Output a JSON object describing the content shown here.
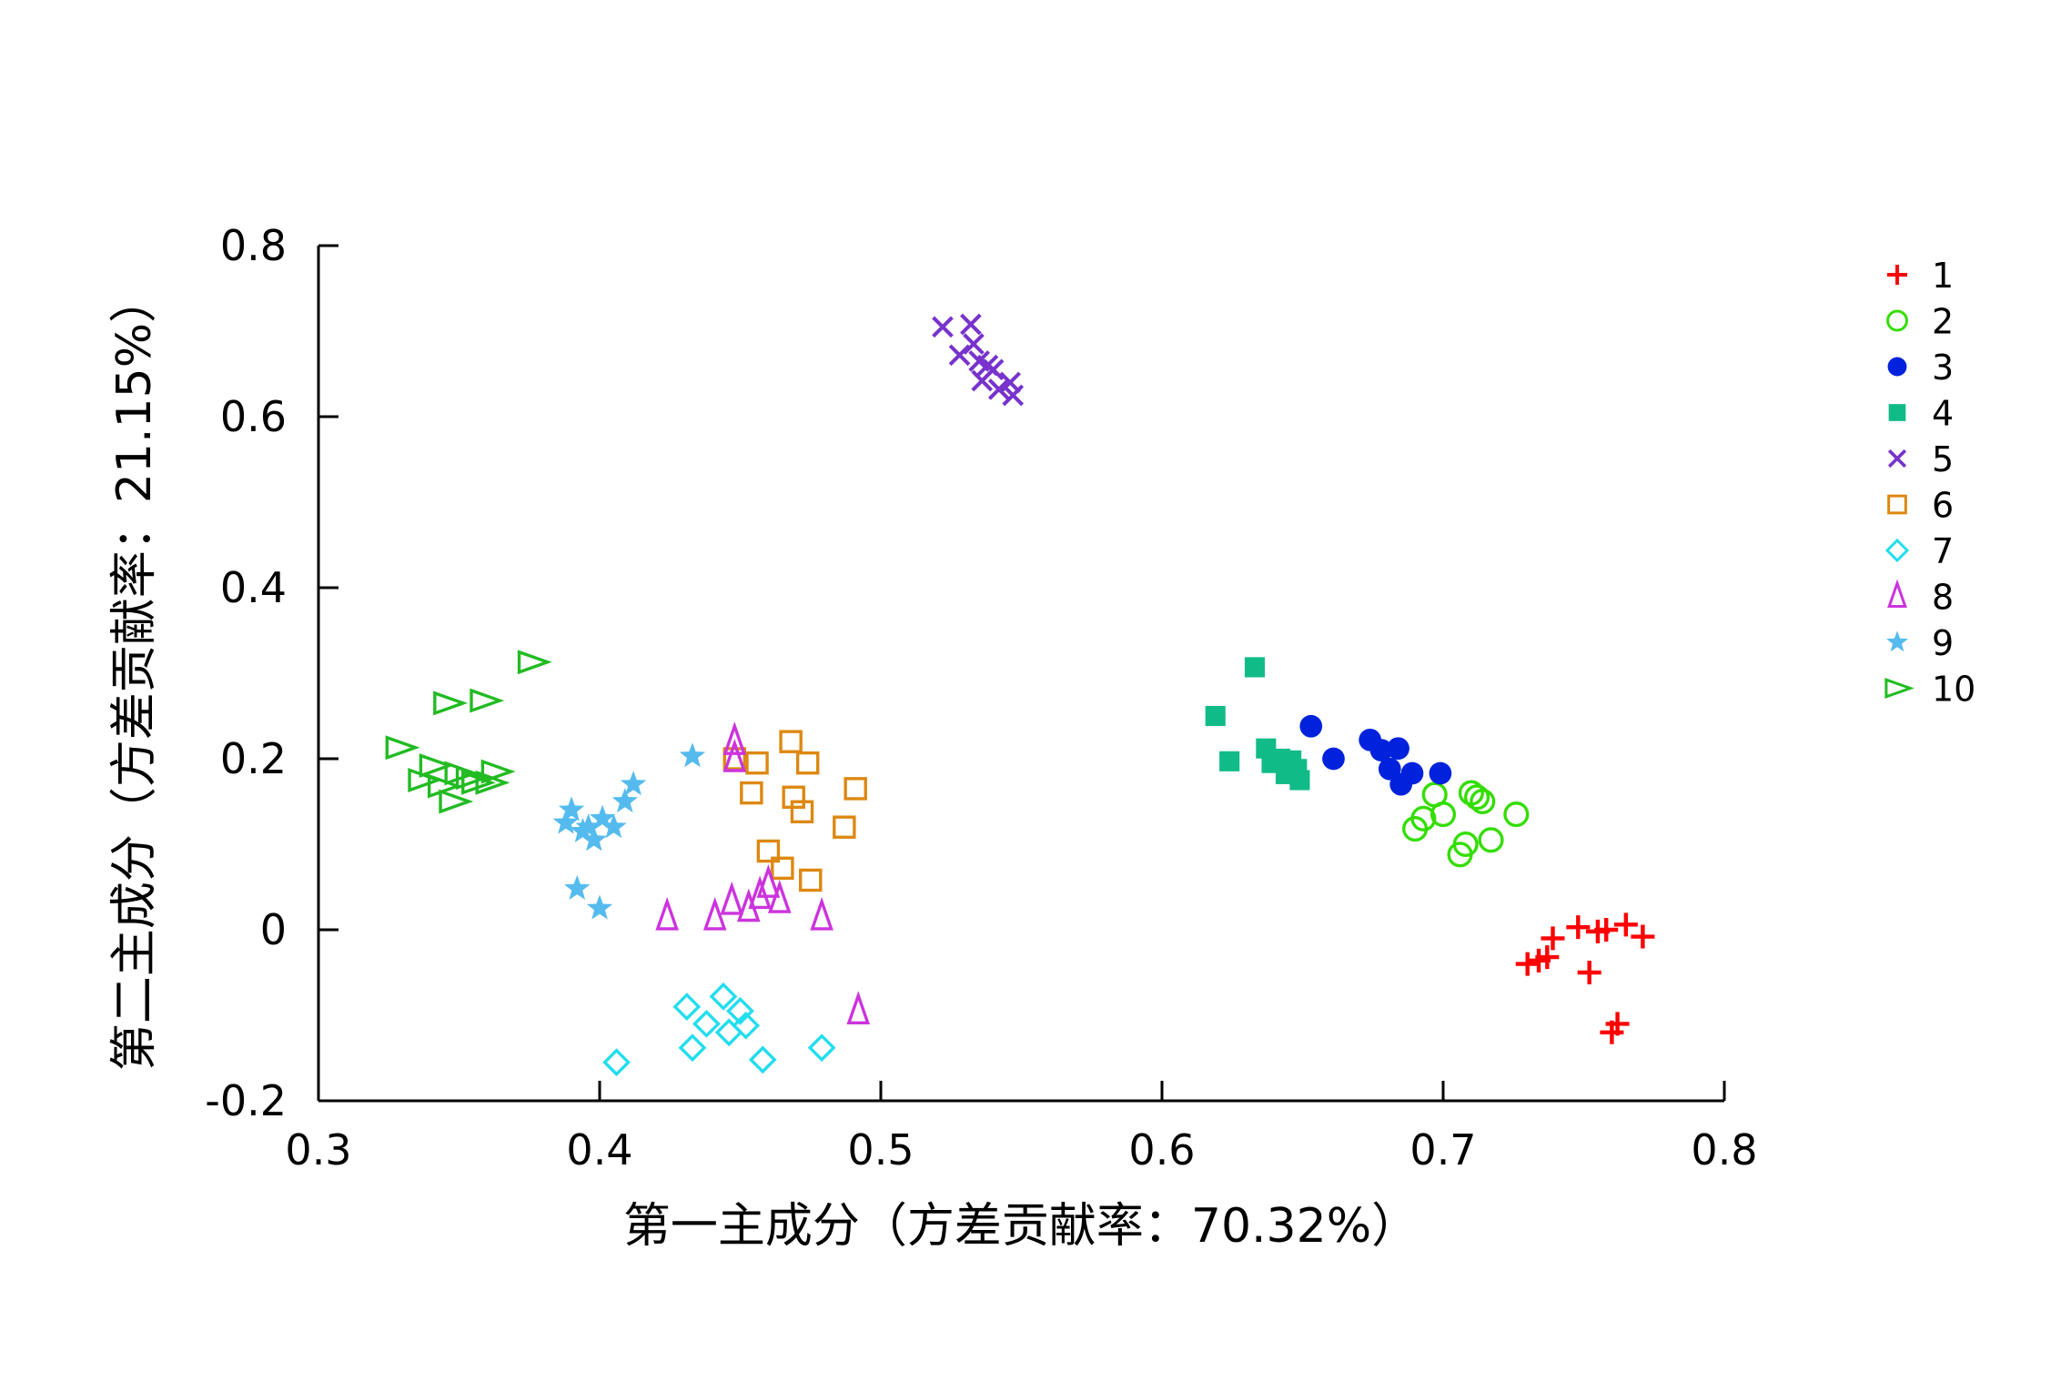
{
  "chart_data": {
    "type": "scatter",
    "xlabel": "第一主成分（方差贡献率：70.32%）",
    "ylabel": "第二主成分（方差贡献率：21.15%）",
    "xlim": [
      0.3,
      0.8
    ],
    "ylim": [
      -0.2,
      0.8
    ],
    "xticks": [
      "0.3",
      "0.4",
      "0.5",
      "0.6",
      "0.7",
      "0.8"
    ],
    "yticks": [
      "-0.2",
      "0",
      "0.2",
      "0.4",
      "0.6",
      "0.8"
    ],
    "grid": false,
    "legend_position": "top-right",
    "series": [
      {
        "name": "1",
        "marker": "plus",
        "color": "#ff0000",
        "points": [
          [
            0.73,
            -0.04
          ],
          [
            0.734,
            -0.036
          ],
          [
            0.737,
            -0.032
          ],
          [
            0.739,
            -0.01
          ],
          [
            0.748,
            0.003
          ],
          [
            0.752,
            -0.05
          ],
          [
            0.755,
            -0.002
          ],
          [
            0.76,
            -0.12
          ],
          [
            0.762,
            -0.11
          ],
          [
            0.765,
            0.006
          ],
          [
            0.771,
            -0.008
          ],
          [
            0.758,
            0.0
          ]
        ]
      },
      {
        "name": "2",
        "marker": "circle-open",
        "color": "#33dd00",
        "points": [
          [
            0.69,
            0.118
          ],
          [
            0.693,
            0.13
          ],
          [
            0.697,
            0.158
          ],
          [
            0.7,
            0.135
          ],
          [
            0.706,
            0.088
          ],
          [
            0.708,
            0.1
          ],
          [
            0.712,
            0.155
          ],
          [
            0.714,
            0.15
          ],
          [
            0.717,
            0.105
          ],
          [
            0.726,
            0.135
          ],
          [
            0.71,
            0.16
          ]
        ]
      },
      {
        "name": "3",
        "marker": "circle-filled",
        "color": "#0022dd",
        "points": [
          [
            0.653,
            0.238
          ],
          [
            0.661,
            0.2
          ],
          [
            0.674,
            0.222
          ],
          [
            0.678,
            0.21
          ],
          [
            0.681,
            0.188
          ],
          [
            0.684,
            0.212
          ],
          [
            0.685,
            0.17
          ],
          [
            0.689,
            0.183
          ],
          [
            0.699,
            0.183
          ]
        ]
      },
      {
        "name": "4",
        "marker": "square-filled",
        "color": "#11bb88",
        "points": [
          [
            0.619,
            0.25
          ],
          [
            0.624,
            0.197
          ],
          [
            0.633,
            0.307
          ],
          [
            0.637,
            0.212
          ],
          [
            0.639,
            0.195
          ],
          [
            0.642,
            0.2
          ],
          [
            0.644,
            0.182
          ],
          [
            0.646,
            0.198
          ],
          [
            0.648,
            0.188
          ],
          [
            0.649,
            0.175
          ]
        ]
      },
      {
        "name": "5",
        "marker": "x",
        "color": "#7733cc",
        "points": [
          [
            0.522,
            0.705
          ],
          [
            0.528,
            0.672
          ],
          [
            0.532,
            0.708
          ],
          [
            0.533,
            0.685
          ],
          [
            0.535,
            0.665
          ],
          [
            0.536,
            0.642
          ],
          [
            0.538,
            0.66
          ],
          [
            0.54,
            0.655
          ],
          [
            0.542,
            0.632
          ],
          [
            0.546,
            0.64
          ],
          [
            0.547,
            0.625
          ]
        ]
      },
      {
        "name": "6",
        "marker": "square-open",
        "color": "#dd8811",
        "points": [
          [
            0.448,
            0.2
          ],
          [
            0.454,
            0.16
          ],
          [
            0.456,
            0.195
          ],
          [
            0.46,
            0.092
          ],
          [
            0.465,
            0.072
          ],
          [
            0.468,
            0.22
          ],
          [
            0.469,
            0.155
          ],
          [
            0.472,
            0.138
          ],
          [
            0.474,
            0.195
          ],
          [
            0.475,
            0.058
          ],
          [
            0.487,
            0.12
          ],
          [
            0.491,
            0.165
          ]
        ]
      },
      {
        "name": "7",
        "marker": "diamond-open",
        "color": "#22ddee",
        "points": [
          [
            0.406,
            -0.155
          ],
          [
            0.431,
            -0.09
          ],
          [
            0.433,
            -0.138
          ],
          [
            0.438,
            -0.11
          ],
          [
            0.444,
            -0.078
          ],
          [
            0.446,
            -0.12
          ],
          [
            0.45,
            -0.095
          ],
          [
            0.452,
            -0.112
          ],
          [
            0.458,
            -0.152
          ],
          [
            0.479,
            -0.138
          ]
        ]
      },
      {
        "name": "8",
        "marker": "triangle-open",
        "color": "#cc33dd",
        "points": [
          [
            0.424,
            0.015
          ],
          [
            0.441,
            0.015
          ],
          [
            0.447,
            0.033
          ],
          [
            0.448,
            0.22
          ],
          [
            0.448,
            0.2
          ],
          [
            0.453,
            0.025
          ],
          [
            0.457,
            0.04
          ],
          [
            0.46,
            0.053
          ],
          [
            0.464,
            0.035
          ],
          [
            0.479,
            0.015
          ],
          [
            0.492,
            -0.095
          ]
        ]
      },
      {
        "name": "9",
        "marker": "star",
        "color": "#55bbee",
        "points": [
          [
            0.388,
            0.125
          ],
          [
            0.39,
            0.14
          ],
          [
            0.392,
            0.048
          ],
          [
            0.394,
            0.115
          ],
          [
            0.396,
            0.12
          ],
          [
            0.398,
            0.105
          ],
          [
            0.4,
            0.025
          ],
          [
            0.401,
            0.13
          ],
          [
            0.405,
            0.12
          ],
          [
            0.409,
            0.15
          ],
          [
            0.412,
            0.17
          ],
          [
            0.433,
            0.203
          ]
        ]
      },
      {
        "name": "10",
        "marker": "triangle-right-open",
        "color": "#22bb22",
        "points": [
          [
            0.329,
            0.213
          ],
          [
            0.337,
            0.175
          ],
          [
            0.341,
            0.192
          ],
          [
            0.344,
            0.168
          ],
          [
            0.346,
            0.265
          ],
          [
            0.348,
            0.15
          ],
          [
            0.35,
            0.183
          ],
          [
            0.354,
            0.178
          ],
          [
            0.356,
            0.172
          ],
          [
            0.359,
            0.268
          ],
          [
            0.361,
            0.172
          ],
          [
            0.363,
            0.185
          ],
          [
            0.376,
            0.313
          ]
        ]
      }
    ]
  }
}
